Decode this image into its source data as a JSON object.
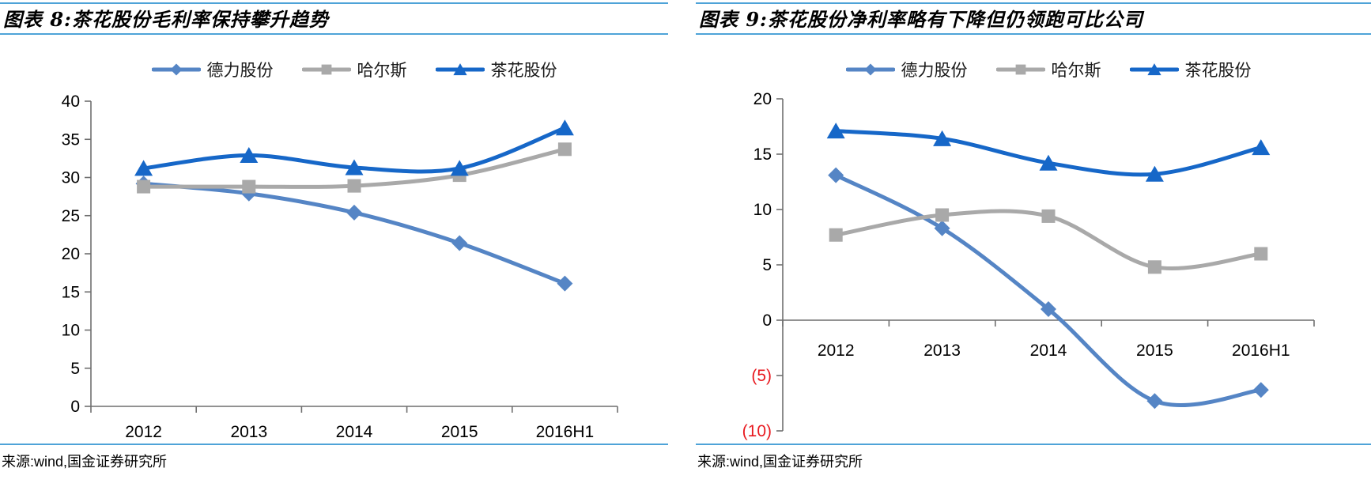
{
  "accent_rule_color": "#4ea3d8",
  "axis_color": "#6f6f6f",
  "negative_label_color": "#e8191f",
  "chart_data": [
    {
      "id": "fig8",
      "type": "line",
      "title": "图表 8:茶花股份毛利率保持攀升趋势",
      "categories": [
        "2012",
        "2013",
        "2014",
        "2015",
        "2016H1"
      ],
      "series": [
        {
          "name": "德力股份",
          "marker": "diamond",
          "color": "#5585c5",
          "values": [
            29.2,
            27.9,
            25.4,
            21.4,
            16.1
          ]
        },
        {
          "name": "哈尔斯",
          "marker": "square",
          "color": "#a9a9a9",
          "values": [
            28.8,
            28.8,
            28.9,
            30.3,
            33.7
          ]
        },
        {
          "name": "茶花股份",
          "marker": "triangle",
          "color": "#1667c8",
          "values": [
            31.2,
            32.9,
            31.3,
            31.2,
            36.5
          ]
        }
      ],
      "ylim": [
        0,
        40
      ],
      "ystep": 5,
      "grid": false,
      "smooth": true,
      "legend_position": "top",
      "source_note": "来源:wind,国金证券研究所"
    },
    {
      "id": "fig9",
      "type": "line",
      "title": "图表 9:茶花股份净利率略有下降但仍领跑可比公司",
      "categories": [
        "2012",
        "2013",
        "2014",
        "2015",
        "2016H1"
      ],
      "series": [
        {
          "name": "德力股份",
          "marker": "diamond",
          "color": "#5585c5",
          "values": [
            13.1,
            8.3,
            1.0,
            -7.3,
            -6.3
          ]
        },
        {
          "name": "哈尔斯",
          "marker": "square",
          "color": "#a9a9a9",
          "values": [
            7.7,
            9.5,
            9.4,
            4.8,
            6.0
          ]
        },
        {
          "name": "茶花股份",
          "marker": "triangle",
          "color": "#1667c8",
          "values": [
            17.1,
            16.4,
            14.2,
            13.2,
            15.6
          ]
        }
      ],
      "ylim": [
        -10,
        20
      ],
      "ystep": 5,
      "negative_format": "parentheses_red",
      "grid": false,
      "smooth": true,
      "legend_position": "top",
      "source_note": "来源:wind,国金证券研究所"
    }
  ]
}
